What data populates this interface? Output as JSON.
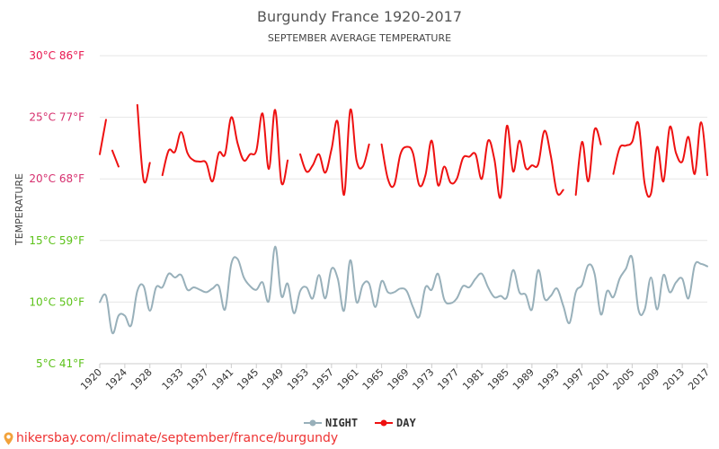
{
  "colors": {
    "day": "#ee1111",
    "night": "#98b0ba",
    "hot_tick": "#e8174f",
    "warm_tick": "#d62f6e",
    "mild_tick": "#5bc218",
    "footer": "#ee3333"
  },
  "chart_data": {
    "type": "line",
    "title": "Burgundy France 1920-2017",
    "subtitle": "SEPTEMBER AVERAGE TEMPERATURE",
    "ylabel": "TEMPERATURE",
    "ylim": [
      5,
      30
    ],
    "xlim": [
      1920,
      2017
    ],
    "y_ticks": [
      {
        "value": 30,
        "label": "30°C 86°F",
        "color": "#e8174f"
      },
      {
        "value": 25,
        "label": "25°C 77°F",
        "color": "#d62f6e"
      },
      {
        "value": 20,
        "label": "20°C 68°F",
        "color": "#d62f6e"
      },
      {
        "value": 15,
        "label": "15°C 59°F",
        "color": "#5bc218"
      },
      {
        "value": 10,
        "label": "10°C 50°F",
        "color": "#5bc218"
      },
      {
        "value": 5,
        "label": "5°C 41°F",
        "color": "#5bc218"
      }
    ],
    "x_ticks": [
      1920,
      1924,
      1928,
      1933,
      1937,
      1941,
      1945,
      1949,
      1953,
      1957,
      1961,
      1965,
      1969,
      1973,
      1977,
      1981,
      1985,
      1989,
      1993,
      1997,
      2001,
      2005,
      2009,
      2013,
      2017
    ],
    "series": [
      {
        "name": "NIGHT",
        "color": "#98b0ba",
        "segments": [
          {
            "start": 1920,
            "values": [
              10.0,
              10.5,
              7.5,
              8.9,
              8.9,
              8.1,
              10.9,
              11.3,
              9.3,
              11.2,
              11.2,
              12.3,
              12.0,
              12.2,
              11.0,
              11.2,
              11.0,
              10.8,
              11.1,
              11.3,
              9.4,
              13.1,
              13.5,
              12.0,
              11.3,
              11.0,
              11.6,
              10.1,
              14.5,
              10.5,
              11.5,
              9.1,
              10.9,
              11.2,
              10.3,
              12.2,
              10.3,
              12.7,
              11.9,
              9.3,
              13.4,
              10.0,
              11.4,
              11.5,
              9.6,
              11.7,
              10.8,
              10.8,
              11.1,
              10.9,
              9.6,
              8.8,
              11.2,
              11.0,
              12.3,
              10.2,
              9.9,
              10.3,
              11.3,
              11.2,
              11.9,
              12.3,
              11.2,
              10.4,
              10.5,
              10.4,
              12.6,
              10.8,
              10.6,
              9.4,
              12.6,
              10.3,
              10.5,
              11.1,
              9.7,
              8.3,
              10.8,
              11.4,
              13.0,
              12.3,
              9.0,
              10.9,
              10.4,
              11.9,
              12.7,
              13.6,
              9.4,
              9.4,
              12.0,
              9.4,
              12.2,
              10.8,
              11.6,
              11.9,
              10.3,
              13.0,
              13.1,
              12.9
            ]
          }
        ]
      },
      {
        "name": "DAY",
        "color": "#ee1111",
        "segments": [
          {
            "start": 1920,
            "values": [
              22.0,
              24.8
            ]
          },
          {
            "start": 1922,
            "values": [
              22.3,
              21.0
            ]
          },
          {
            "start": 1926,
            "values": [
              26.0,
              19.9,
              21.3
            ]
          },
          {
            "start": 1930,
            "values": [
              20.3,
              22.3,
              22.2,
              23.8,
              22.1,
              21.5,
              21.4,
              21.3,
              19.8,
              22.1,
              22.0,
              25.0,
              22.9,
              21.5,
              22.0,
              22.3,
              25.3,
              20.8,
              25.6,
              19.7,
              21.5
            ]
          },
          {
            "start": 1952,
            "values": [
              22.0,
              20.6,
              21.1,
              22.0,
              20.5,
              22.4,
              24.6,
              18.7,
              25.6,
              21.5,
              21.0,
              22.8
            ]
          },
          {
            "start": 1965,
            "values": [
              22.8,
              20.0,
              19.5,
              22.0,
              22.6,
              22.1,
              19.5,
              20.3,
              23.1,
              19.5,
              21.0,
              19.7,
              20.0,
              21.7,
              21.8,
              22.0,
              20.0,
              23.1,
              21.6,
              18.5,
              24.3,
              20.6,
              23.1,
              20.9,
              21.1,
              21.2,
              23.9,
              21.9,
              18.9,
              19.1
            ]
          },
          {
            "start": 1996,
            "values": [
              18.7,
              23.0,
              19.8,
              24.0,
              22.8
            ]
          },
          {
            "start": 2002,
            "values": [
              20.4,
              22.5,
              22.7,
              23.0,
              24.5,
              19.6,
              18.8,
              22.6,
              19.8,
              24.2,
              22.1,
              21.4,
              23.4,
              20.4,
              24.6,
              20.3
            ]
          }
        ]
      }
    ],
    "legend": {
      "position": "bottom",
      "items": [
        "NIGHT",
        "DAY"
      ]
    }
  },
  "footer": {
    "text": "hikersbay.com/climate/september/france/burgundy"
  }
}
